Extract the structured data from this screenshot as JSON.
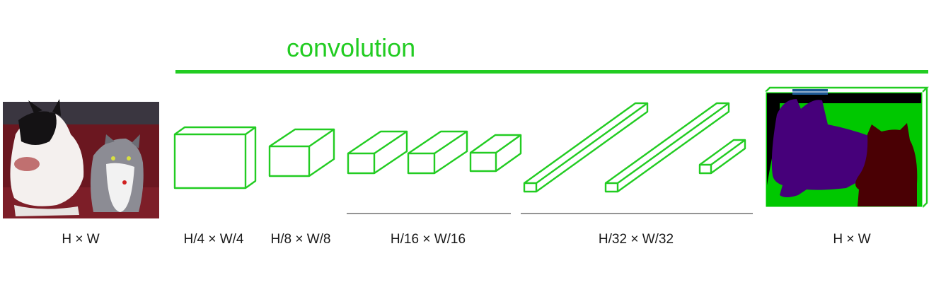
{
  "title": "convolution",
  "colors": {
    "accent": "#22cc22",
    "bracket": "#555555",
    "seg_background": "#000000",
    "seg_grass": "#00c800",
    "seg_dog": "#46007a",
    "seg_cat": "#4a0004",
    "seg_top": "#1e5a96"
  },
  "input": {
    "label": "H × W",
    "content": "photo of a dog and a cat on a red sofa"
  },
  "stages": [
    {
      "label": "H/4 × W/4"
    },
    {
      "label": "H/8 × W/8"
    },
    {
      "label": "H/16 × W/16"
    },
    {
      "label": "H/32 × W/32"
    }
  ],
  "output": {
    "label": "H × W",
    "content": "segmentation map of dog and cat"
  }
}
